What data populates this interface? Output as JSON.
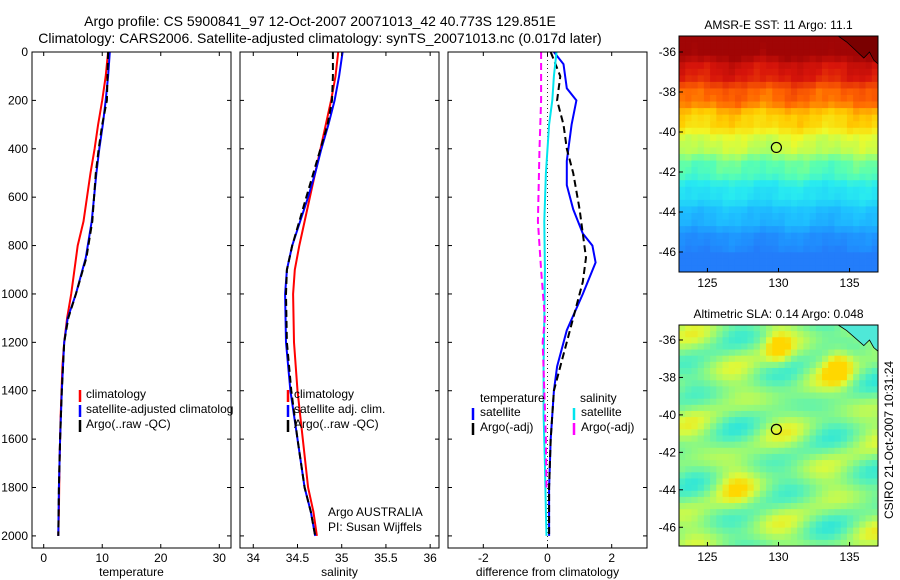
{
  "header": {
    "line1": "Argo profile: CS 5900841_97 12-Oct-2007 20071013_42 40.773S 129.851E",
    "line2": "Climatology: CARS2006. Satellite-adjusted climatology: synTS_20071013.nc (0.017d later)"
  },
  "colors": {
    "climatology": "#ff0000",
    "satellite": "#0000ff",
    "argo": "#000000",
    "sat_salinity": "#00e5ee",
    "argo_salinity": "#ff00ff"
  },
  "chart_data": [
    {
      "id": "temperature",
      "type": "line",
      "xlabel": "temperature",
      "ylabel": "",
      "xlim": [
        -2,
        32
      ],
      "ylim": [
        2050,
        0
      ],
      "xticks": [
        0,
        10,
        20,
        30
      ],
      "yticks": [
        0,
        200,
        400,
        600,
        800,
        1000,
        1200,
        1400,
        1600,
        1800,
        2000
      ],
      "legend": [
        "climatology",
        "satellite-adjusted climatolog",
        "Argo(..raw -QC)"
      ],
      "series": [
        {
          "name": "climatology",
          "color_key": "climatology",
          "x": [
            11.0,
            10.6,
            10.0,
            9.3,
            8.7,
            8.0,
            6.8,
            5.8,
            4.7,
            4.0,
            3.5,
            3.2,
            2.9,
            2.7,
            2.6,
            2.5
          ],
          "y": [
            0,
            100,
            200,
            300,
            400,
            500,
            700,
            800,
            1000,
            1100,
            1200,
            1300,
            1500,
            1700,
            1900,
            2000
          ]
        },
        {
          "name": "satellite-adjusted climatology",
          "color_key": "satellite",
          "x": [
            11.3,
            11.0,
            10.6,
            10.1,
            9.5,
            9.0,
            8.2,
            7.2,
            5.5,
            4.1,
            3.5,
            3.1,
            2.8,
            2.6,
            2.5
          ],
          "y": [
            0,
            100,
            200,
            300,
            400,
            500,
            700,
            850,
            1000,
            1100,
            1200,
            1400,
            1600,
            1800,
            2000
          ]
        },
        {
          "name": "Argo(..raw -QC)",
          "color_key": "argo",
          "x": [
            11.0,
            10.9,
            10.8,
            10.0,
            9.4,
            8.9,
            8.3,
            7.3,
            5.5,
            4.2,
            3.5,
            3.1,
            2.8,
            2.6,
            2.5
          ],
          "y": [
            0,
            100,
            200,
            300,
            400,
            500,
            700,
            850,
            1000,
            1100,
            1200,
            1400,
            1600,
            1800,
            2000
          ]
        }
      ]
    },
    {
      "id": "salinity",
      "type": "line",
      "xlabel": "salinity",
      "xlim": [
        33.85,
        36.1
      ],
      "ylim": [
        2050,
        0
      ],
      "xticks": [
        34,
        34.5,
        35,
        35.5,
        36
      ],
      "yticks": [
        0,
        200,
        400,
        600,
        800,
        1000,
        1200,
        1400,
        1600,
        1800,
        2000
      ],
      "legend": [
        "climatology",
        "satellite adj. clim.",
        "Argo(..raw -QC)"
      ],
      "annotation": [
        "Argo AUSTRALIA",
        "PI: Susan Wijffels"
      ],
      "series": [
        {
          "name": "climatology",
          "color_key": "climatology",
          "x": [
            34.96,
            34.93,
            34.88,
            34.82,
            34.76,
            34.7,
            34.64,
            34.58,
            34.52,
            34.47,
            34.45,
            34.46,
            34.5,
            34.56,
            34.62,
            34.68,
            34.72
          ],
          "y": [
            0,
            100,
            200,
            300,
            400,
            500,
            600,
            700,
            800,
            900,
            1000,
            1200,
            1400,
            1600,
            1800,
            1900,
            2000
          ]
        },
        {
          "name": "satellite adj. clim.",
          "color_key": "satellite",
          "x": [
            35.01,
            34.97,
            34.92,
            34.85,
            34.77,
            34.7,
            34.62,
            34.53,
            34.44,
            34.38,
            34.36,
            34.37,
            34.42,
            34.5,
            34.58,
            34.65,
            34.7
          ],
          "y": [
            0,
            100,
            200,
            300,
            400,
            500,
            600,
            700,
            800,
            900,
            1000,
            1200,
            1400,
            1600,
            1800,
            1900,
            2000
          ]
        },
        {
          "name": "Argo(..raw -QC)",
          "color_key": "argo",
          "x": [
            34.9,
            34.9,
            34.89,
            34.84,
            34.76,
            34.68,
            34.6,
            34.52,
            34.44,
            34.38,
            34.37,
            34.38,
            34.43,
            34.5,
            34.58,
            34.65,
            34.7
          ],
          "y": [
            0,
            100,
            200,
            300,
            400,
            500,
            600,
            700,
            800,
            900,
            1000,
            1200,
            1400,
            1600,
            1800,
            1900,
            2000
          ]
        }
      ]
    },
    {
      "id": "difference",
      "type": "line",
      "xlabel": "difference from climatology",
      "xlim": [
        -3.1,
        3.1
      ],
      "ylim": [
        2050,
        0
      ],
      "xticks": [
        -2,
        0,
        2
      ],
      "yticks": [
        0,
        200,
        400,
        600,
        800,
        1000,
        1200,
        1400,
        1600,
        1800,
        2000
      ],
      "legend_titles": [
        "temperature",
        "salinity"
      ],
      "legend_left": [
        "satellite",
        "Argo(-adj)"
      ],
      "legend_right": [
        "satellite",
        "Argo(-adj)"
      ],
      "series": [
        {
          "name": "temperature satellite",
          "color_key": "satellite",
          "x": [
            0.2,
            0.5,
            0.6,
            0.9,
            0.75,
            0.6,
            0.6,
            0.8,
            1.1,
            1.4,
            1.5,
            1.1,
            0.6,
            0.3,
            0.2,
            0.1,
            0.05,
            0.05
          ],
          "y": [
            0,
            50,
            150,
            200,
            300,
            450,
            550,
            650,
            750,
            800,
            870,
            1000,
            1150,
            1300,
            1400,
            1600,
            1800,
            2000
          ]
        },
        {
          "name": "temperature Argo(-adj)",
          "color_key": "argo",
          "x": [
            0.1,
            0.4,
            0.3,
            0.5,
            0.6,
            0.8,
            1.0,
            1.2,
            1.1,
            0.8,
            0.4,
            0.2,
            0.1,
            0.05,
            0.05
          ],
          "y": [
            0,
            100,
            200,
            300,
            400,
            500,
            650,
            850,
            950,
            1100,
            1300,
            1400,
            1600,
            1800,
            2000
          ]
        },
        {
          "name": "salinity satellite",
          "color_key": "sat_salinity",
          "x": [
            0.28,
            0.2,
            0.15,
            0.05,
            -0.05,
            -0.1,
            -0.08,
            -0.1,
            -0.12,
            -0.12,
            -0.08,
            -0.05,
            -0.03
          ],
          "y": [
            0,
            100,
            200,
            300,
            500,
            700,
            900,
            1100,
            1300,
            1500,
            1700,
            1900,
            2000
          ]
        },
        {
          "name": "salinity Argo(-adj)",
          "color_key": "argo_salinity",
          "x": [
            -0.2,
            -0.2,
            -0.25,
            -0.3,
            -0.2,
            -0.08,
            -0.15,
            -0.1,
            -0.05,
            -0.03
          ],
          "y": [
            0,
            200,
            400,
            700,
            900,
            1100,
            1200,
            1400,
            1600,
            1800
          ]
        }
      ]
    }
  ],
  "maps": {
    "sst": {
      "title": "AMSR-E SST: 11 Argo: 11.1",
      "xticks": [
        "125",
        "130",
        "135"
      ],
      "yticks": [
        "-36",
        "-38",
        "-40",
        "-42",
        "-44",
        "-46"
      ],
      "xlim": [
        123,
        137
      ],
      "ylim": [
        -47,
        -35.2
      ],
      "marker": {
        "lon": 129.851,
        "lat": -40.773
      }
    },
    "sla": {
      "title": "Altimetric SLA: 0.14 Argo: 0.048",
      "xticks": [
        "125",
        "130",
        "135"
      ],
      "yticks": [
        "-36",
        "-38",
        "-40",
        "-42",
        "-44",
        "-46"
      ],
      "xlim": [
        123,
        137
      ],
      "ylim": [
        -47,
        -35.2
      ],
      "marker": {
        "lon": 129.851,
        "lat": -40.773
      }
    }
  },
  "footer": {
    "stamp": "CSIRO 21-Oct-2007 10:31:24"
  }
}
